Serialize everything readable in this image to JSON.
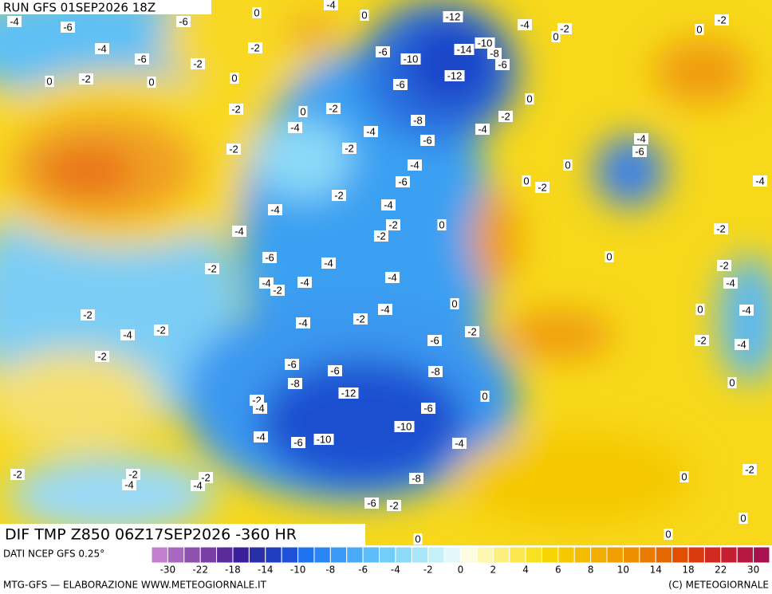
{
  "header": {
    "run": "RUN GFS 01SEP2026 18Z"
  },
  "map": {
    "title": "DIF TMP Z850 06Z17SEP2026 -360 HR",
    "contour_labels": [
      -4,
      -6,
      -6,
      0,
      -4,
      0,
      -12,
      -4,
      -2,
      0,
      0,
      -2,
      -4,
      -6,
      -2,
      -2,
      -6,
      -10,
      -10,
      -14,
      -8,
      -6,
      -12,
      0,
      -2,
      0,
      0,
      -6,
      0,
      -2,
      0,
      -2,
      -2,
      -8,
      -4,
      -4,
      -4,
      -6,
      -2,
      -2,
      -4,
      -6,
      0,
      -4,
      -6,
      0,
      -2,
      -2,
      -4,
      -4,
      -4,
      0,
      -2,
      -2,
      -4,
      -2,
      0,
      -6,
      -4,
      -2,
      -2,
      -4,
      -4,
      -4,
      -2,
      -4,
      0,
      -4,
      -2,
      0,
      -4,
      -4,
      -2,
      -2,
      -4,
      -2,
      -2,
      -4,
      -6,
      -2,
      -6,
      -6,
      -8,
      -8,
      0,
      -12,
      0,
      -2,
      -4,
      -6,
      -10,
      -4,
      -6,
      -10,
      -4,
      -2,
      -2,
      -4,
      -2,
      -4,
      0,
      -2,
      -8,
      -6,
      -2,
      0,
      0,
      0
    ]
  },
  "legend": {
    "source": "DATI NCEP GFS 0.25°",
    "colors": [
      "#c27fd0",
      "#a867c0",
      "#8e51b0",
      "#7a3fa2",
      "#5a2a9a",
      "#3b1f9a",
      "#2a2fa8",
      "#1f3fc0",
      "#1f50d8",
      "#1f72f0",
      "#2a85f5",
      "#3a98f8",
      "#4aaaf8",
      "#5ebcf8",
      "#74ccf8",
      "#8cdaf8",
      "#a6e6f8",
      "#c4f0f8",
      "#e4f8fc",
      "#fefce0",
      "#fdf6b0",
      "#fcef80",
      "#fbe850",
      "#f9e020",
      "#f7d400",
      "#f5c800",
      "#f3bc00",
      "#f1ae00",
      "#ef9f00",
      "#ec8f00",
      "#e97c00",
      "#e56800",
      "#e05000",
      "#d93a10",
      "#d02a20",
      "#c41f30",
      "#b81840",
      "#a81050"
    ],
    "ticks": [
      -30,
      -22,
      -18,
      -14,
      -10,
      -8,
      -6,
      -4,
      -2,
      0,
      2,
      4,
      6,
      8,
      10,
      14,
      18,
      22,
      30
    ]
  },
  "footer": {
    "left": "MTG-GFS — ELABORAZIONE WWW.METEOGIORNALE.IT",
    "right": "(C) METEOGIORNALE"
  }
}
